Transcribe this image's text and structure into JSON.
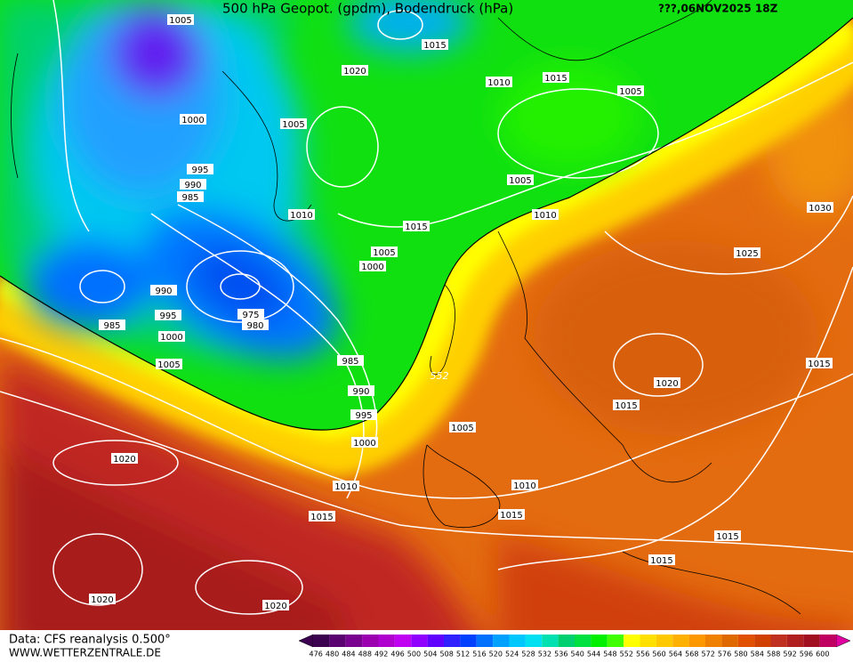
{
  "header": {
    "title": "500 hPa Geopot. (gpdm), Bodendruck (hPa)",
    "run": "???,06NOV2025 18Z"
  },
  "isobar_labels": [
    "1005",
    "1015",
    "1020",
    "1010",
    "1015",
    "1005",
    "1000",
    "1005",
    "995",
    "990",
    "985",
    "1005",
    "1010",
    "1015",
    "1010",
    "1030",
    "1005",
    "1000",
    "1025",
    "990",
    "975",
    "980",
    "985",
    "995",
    "1000",
    "1005",
    "985",
    "1015",
    "990",
    "1020",
    "995",
    "1015",
    "1005",
    "1000",
    "1020",
    "1010",
    "1010",
    "1015",
    "1015",
    "1015",
    "1015",
    "1020",
    "1020"
  ],
  "front_label": "552",
  "footer": {
    "source": "Data: CFS reanalysis 0.500°",
    "site": "WWW.WETTERZENTRALE.DE"
  },
  "colorbar": {
    "labels": [
      "476",
      "480",
      "484",
      "488",
      "492",
      "496",
      "500",
      "504",
      "508",
      "512",
      "516",
      "520",
      "524",
      "528",
      "532",
      "536",
      "540",
      "544",
      "548",
      "552",
      "556",
      "560",
      "564",
      "568",
      "572",
      "576",
      "580",
      "584",
      "588",
      "592",
      "596",
      "600"
    ],
    "colors": [
      "#3c0050",
      "#5a0070",
      "#7a0090",
      "#9a00b0",
      "#b000d0",
      "#c000f0",
      "#9000ff",
      "#6000ff",
      "#3020ff",
      "#0040ff",
      "#0070ff",
      "#00a0ff",
      "#00c8ff",
      "#00e0f0",
      "#00e0b0",
      "#00d070",
      "#00e040",
      "#00f000",
      "#40ff00",
      "#ffff00",
      "#ffe000",
      "#ffc800",
      "#ffb000",
      "#ff9800",
      "#f08000",
      "#e06800",
      "#e05000",
      "#d04000",
      "#c03020",
      "#b02020",
      "#a01020",
      "#c00060"
    ]
  }
}
